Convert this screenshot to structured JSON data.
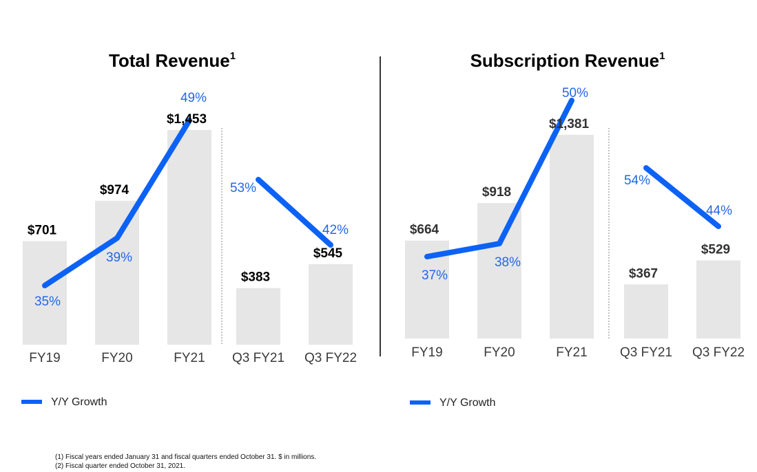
{
  "colors": {
    "bar": "#e6e6e6",
    "line": "#0c62f5",
    "growth_text": "#2366e8",
    "value_dark": "#000000",
    "value_gray": "#333333",
    "divider": "#000000",
    "dotted": "#999999"
  },
  "legend": {
    "label": "Y/Y Growth"
  },
  "footnotes": [
    "(1)  Fiscal years ended January 31 and fiscal quarters ended October 31. $ in millions.",
    "(2)  Fiscal quarter ended October 31, 2021."
  ],
  "chart_data": [
    {
      "type": "bar",
      "title": "Total Revenue",
      "title_superscript": "1",
      "categories": [
        "FY19",
        "FY20",
        "FY21",
        "Q3 FY21",
        "Q3 FY22"
      ],
      "values": [
        701,
        974,
        1453,
        383,
        545
      ],
      "value_labels": [
        "$701",
        "$974",
        "$1,453",
        "$383",
        "$545"
      ],
      "ylim": [
        0,
        1500
      ],
      "series": [
        {
          "name": "Y/Y Growth",
          "type": "line",
          "values": [
            35,
            39,
            49,
            53,
            42
          ],
          "labels": [
            "35%",
            "39%",
            "49%",
            "53%",
            "42%"
          ],
          "segments": [
            [
              0,
              1,
              2
            ],
            [
              3,
              4
            ]
          ]
        }
      ],
      "legend": "bottom-left",
      "grid": false
    },
    {
      "type": "bar",
      "title": "Subscription Revenue",
      "title_superscript": "1",
      "categories": [
        "FY19",
        "FY20",
        "FY21",
        "Q3 FY21",
        "Q3 FY22"
      ],
      "values": [
        664,
        918,
        1381,
        367,
        529
      ],
      "value_labels": [
        "$664",
        "$918",
        "$1,381",
        "$367",
        "$529"
      ],
      "ylim": [
        0,
        1500
      ],
      "series": [
        {
          "name": "Y/Y Growth",
          "type": "line",
          "values": [
            37,
            38,
            50,
            54,
            44
          ],
          "labels": [
            "37%",
            "38%",
            "50%",
            "54%",
            "44%"
          ],
          "segments": [
            [
              0,
              1,
              2
            ],
            [
              3,
              4
            ]
          ]
        }
      ],
      "legend": "bottom-left",
      "grid": false
    }
  ]
}
